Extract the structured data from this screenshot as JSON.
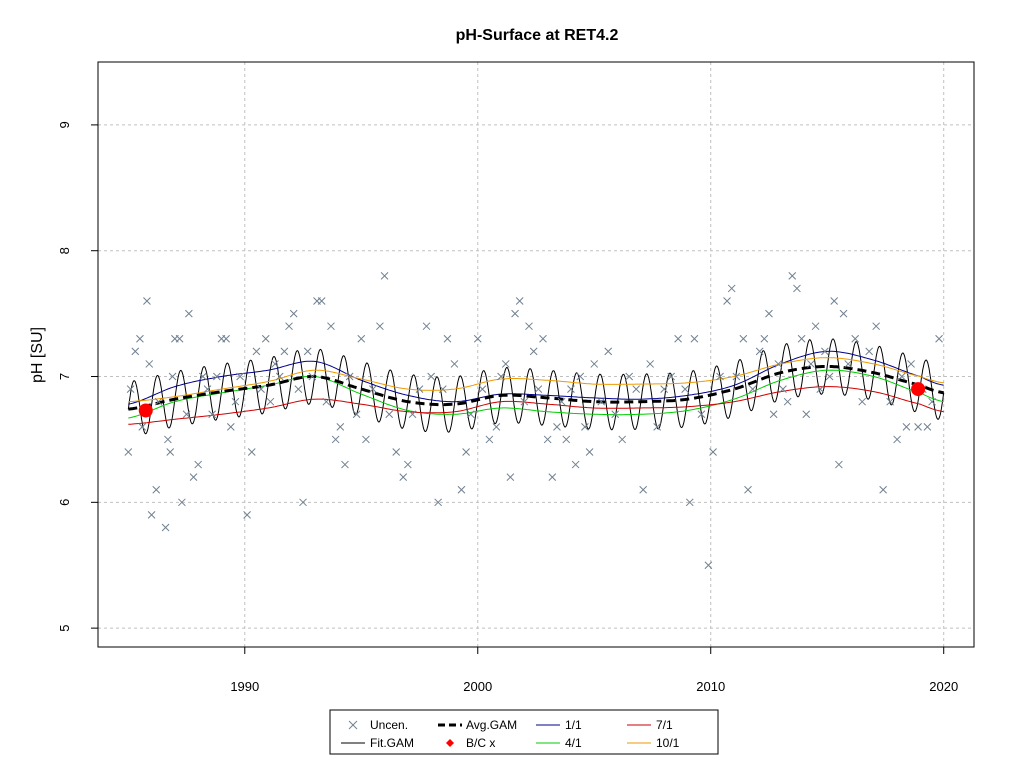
{
  "chart_data": {
    "type": "scatter",
    "title": "pH-Surface at RET4.2",
    "xlabel": "",
    "ylabel": "pH [SU]",
    "xlim": [
      1983.7,
      2021.3
    ],
    "ylim": [
      4.85,
      9.5
    ],
    "x_ticks": [
      1990,
      2000,
      2010,
      2020
    ],
    "y_ticks": [
      5,
      6,
      7,
      8,
      9
    ],
    "grid": true,
    "legend_position": "bottom",
    "colors": {
      "uncen": "#708090",
      "fit_gam": "#000000",
      "avg_gam": "#000000",
      "bc": "#ff0000",
      "s_1_1": "#00008b",
      "s_4_1": "#00cd00",
      "s_7_1": "#cd0000",
      "s_10_1": "#ee9a00",
      "grid": "#c0c0c0"
    },
    "legend": {
      "uncen": "Uncen.",
      "fit_gam": "Fit.GAM",
      "avg_gam": "Avg.GAM",
      "bc": "B/C x",
      "s_1_1": "1/1",
      "s_4_1": "4/1",
      "s_7_1": "7/1",
      "s_10_1": "10/1"
    },
    "points": [
      [
        1985.0,
        6.4
      ],
      [
        1985.1,
        6.9
      ],
      [
        1985.3,
        7.2
      ],
      [
        1985.5,
        7.3
      ],
      [
        1985.6,
        6.6
      ],
      [
        1985.8,
        7.6
      ],
      [
        1985.9,
        7.1
      ],
      [
        1986.0,
        5.9
      ],
      [
        1986.2,
        6.1
      ],
      [
        1986.3,
        6.8
      ],
      [
        1986.6,
        5.8
      ],
      [
        1986.7,
        6.5
      ],
      [
        1986.8,
        6.4
      ],
      [
        1986.9,
        7.0
      ],
      [
        1987.0,
        7.3
      ],
      [
        1987.2,
        7.3
      ],
      [
        1987.3,
        6.0
      ],
      [
        1987.5,
        6.7
      ],
      [
        1987.6,
        7.5
      ],
      [
        1987.8,
        6.2
      ],
      [
        1988.0,
        6.3
      ],
      [
        1988.2,
        7.0
      ],
      [
        1988.4,
        6.9
      ],
      [
        1988.6,
        6.7
      ],
      [
        1988.8,
        7.0
      ],
      [
        1989.0,
        7.3
      ],
      [
        1989.2,
        7.3
      ],
      [
        1989.4,
        6.6
      ],
      [
        1989.6,
        6.8
      ],
      [
        1989.8,
        7.0
      ],
      [
        1990.1,
        5.9
      ],
      [
        1990.3,
        6.4
      ],
      [
        1990.5,
        7.2
      ],
      [
        1990.7,
        6.9
      ],
      [
        1990.9,
        7.3
      ],
      [
        1991.1,
        6.8
      ],
      [
        1991.3,
        7.1
      ],
      [
        1991.5,
        7.0
      ],
      [
        1991.7,
        7.2
      ],
      [
        1991.9,
        7.4
      ],
      [
        1992.1,
        7.5
      ],
      [
        1992.3,
        6.9
      ],
      [
        1992.5,
        6.0
      ],
      [
        1992.7,
        7.2
      ],
      [
        1992.9,
        7.0
      ],
      [
        1993.1,
        7.6
      ],
      [
        1993.3,
        7.6
      ],
      [
        1993.5,
        6.8
      ],
      [
        1993.7,
        7.4
      ],
      [
        1993.9,
        6.5
      ],
      [
        1994.1,
        6.6
      ],
      [
        1994.3,
        6.3
      ],
      [
        1994.5,
        7.0
      ],
      [
        1994.8,
        6.7
      ],
      [
        1995.0,
        7.3
      ],
      [
        1995.2,
        6.5
      ],
      [
        1995.5,
        6.9
      ],
      [
        1995.8,
        7.4
      ],
      [
        1996.0,
        7.8
      ],
      [
        1996.2,
        6.7
      ],
      [
        1996.5,
        6.4
      ],
      [
        1996.8,
        6.2
      ],
      [
        1997.0,
        6.3
      ],
      [
        1997.2,
        6.7
      ],
      [
        1997.5,
        6.9
      ],
      [
        1997.8,
        7.4
      ],
      [
        1998.0,
        7.0
      ],
      [
        1998.3,
        6.0
      ],
      [
        1998.5,
        6.9
      ],
      [
        1998.7,
        7.3
      ],
      [
        1999.0,
        7.1
      ],
      [
        1999.3,
        6.1
      ],
      [
        1999.5,
        6.4
      ],
      [
        1999.7,
        6.7
      ],
      [
        2000.0,
        7.3
      ],
      [
        2000.2,
        6.9
      ],
      [
        2000.5,
        6.5
      ],
      [
        2000.8,
        6.6
      ],
      [
        2001.0,
        7.0
      ],
      [
        2001.2,
        7.1
      ],
      [
        2001.4,
        6.2
      ],
      [
        2001.6,
        7.5
      ],
      [
        2001.8,
        7.6
      ],
      [
        2002.0,
        6.8
      ],
      [
        2002.2,
        7.4
      ],
      [
        2002.4,
        7.2
      ],
      [
        2002.6,
        6.9
      ],
      [
        2002.8,
        7.3
      ],
      [
        2003.0,
        6.5
      ],
      [
        2003.2,
        6.2
      ],
      [
        2003.4,
        6.6
      ],
      [
        2003.6,
        6.8
      ],
      [
        2003.8,
        6.5
      ],
      [
        2004.0,
        6.9
      ],
      [
        2004.2,
        6.3
      ],
      [
        2004.4,
        7.0
      ],
      [
        2004.6,
        6.6
      ],
      [
        2004.8,
        6.4
      ],
      [
        2005.0,
        7.1
      ],
      [
        2005.3,
        6.8
      ],
      [
        2005.6,
        7.2
      ],
      [
        2005.9,
        6.7
      ],
      [
        2006.2,
        6.5
      ],
      [
        2006.5,
        7.0
      ],
      [
        2006.8,
        6.9
      ],
      [
        2007.1,
        6.1
      ],
      [
        2007.4,
        7.1
      ],
      [
        2007.7,
        6.6
      ],
      [
        2008.0,
        6.9
      ],
      [
        2008.3,
        7.0
      ],
      [
        2008.6,
        7.3
      ],
      [
        2008.9,
        6.9
      ],
      [
        2009.1,
        6.0
      ],
      [
        2009.3,
        7.3
      ],
      [
        2009.6,
        6.7
      ],
      [
        2009.9,
        5.5
      ],
      [
        2010.1,
        6.4
      ],
      [
        2010.4,
        7.0
      ],
      [
        2010.7,
        7.6
      ],
      [
        2010.9,
        7.7
      ],
      [
        2011.1,
        7.0
      ],
      [
        2011.4,
        7.3
      ],
      [
        2011.6,
        6.1
      ],
      [
        2011.8,
        6.9
      ],
      [
        2012.1,
        7.2
      ],
      [
        2012.3,
        7.3
      ],
      [
        2012.5,
        7.5
      ],
      [
        2012.7,
        6.7
      ],
      [
        2012.9,
        7.1
      ],
      [
        2013.1,
        6.9
      ],
      [
        2013.3,
        6.8
      ],
      [
        2013.5,
        7.8
      ],
      [
        2013.7,
        7.7
      ],
      [
        2013.9,
        7.3
      ],
      [
        2014.1,
        6.7
      ],
      [
        2014.3,
        7.1
      ],
      [
        2014.5,
        7.4
      ],
      [
        2014.7,
        6.9
      ],
      [
        2014.9,
        7.2
      ],
      [
        2015.1,
        7.0
      ],
      [
        2015.3,
        7.6
      ],
      [
        2015.5,
        6.3
      ],
      [
        2015.7,
        7.5
      ],
      [
        2015.9,
        7.1
      ],
      [
        2016.2,
        7.3
      ],
      [
        2016.5,
        6.8
      ],
      [
        2016.8,
        7.2
      ],
      [
        2017.1,
        7.4
      ],
      [
        2017.4,
        6.1
      ],
      [
        2017.7,
        6.8
      ],
      [
        2018.0,
        6.5
      ],
      [
        2018.2,
        7.0
      ],
      [
        2018.4,
        6.6
      ],
      [
        2018.6,
        7.1
      ],
      [
        2018.9,
        6.6
      ],
      [
        2019.1,
        6.9
      ],
      [
        2019.3,
        6.6
      ],
      [
        2019.5,
        6.8
      ],
      [
        2019.8,
        7.3
      ]
    ],
    "bc_points": [
      [
        1985.75,
        6.73
      ],
      [
        2018.9,
        6.9
      ]
    ],
    "curve_x": [
      1985,
      1987,
      1989,
      1991,
      1993,
      1995,
      1997,
      1999,
      2001,
      2003,
      2005,
      2007,
      2009,
      2011,
      2013,
      2015,
      2017,
      2019,
      2020
    ],
    "series": [
      {
        "key": "s_1_1",
        "values": [
          6.78,
          6.92,
          7.0,
          7.05,
          7.12,
          6.97,
          6.85,
          6.8,
          6.86,
          6.85,
          6.83,
          6.82,
          6.85,
          6.93,
          7.1,
          7.2,
          7.13,
          7.0,
          6.93
        ]
      },
      {
        "key": "s_4_1",
        "values": [
          6.67,
          6.8,
          6.87,
          6.93,
          7.0,
          6.86,
          6.73,
          6.7,
          6.75,
          6.72,
          6.7,
          6.7,
          6.73,
          6.82,
          6.97,
          7.05,
          7.0,
          6.87,
          6.8
        ]
      },
      {
        "key": "s_7_1",
        "values": [
          6.62,
          6.66,
          6.7,
          6.75,
          6.82,
          6.78,
          6.72,
          6.72,
          6.8,
          6.78,
          6.75,
          6.75,
          6.76,
          6.8,
          6.88,
          6.92,
          6.88,
          6.78,
          6.72
        ]
      },
      {
        "key": "s_10_1",
        "values": [
          6.8,
          6.84,
          6.9,
          6.96,
          7.05,
          6.98,
          6.9,
          6.9,
          6.98,
          6.97,
          6.94,
          6.94,
          6.95,
          7.0,
          7.1,
          7.15,
          7.1,
          7.0,
          6.95
        ]
      },
      {
        "key": "avg_gam",
        "values": [
          6.74,
          6.82,
          6.88,
          6.93,
          7.0,
          6.9,
          6.8,
          6.78,
          6.85,
          6.83,
          6.8,
          6.8,
          6.82,
          6.9,
          7.03,
          7.08,
          7.03,
          6.93,
          6.87
        ]
      }
    ],
    "fit_amplitude": 0.22,
    "fit_period": 1.0
  }
}
